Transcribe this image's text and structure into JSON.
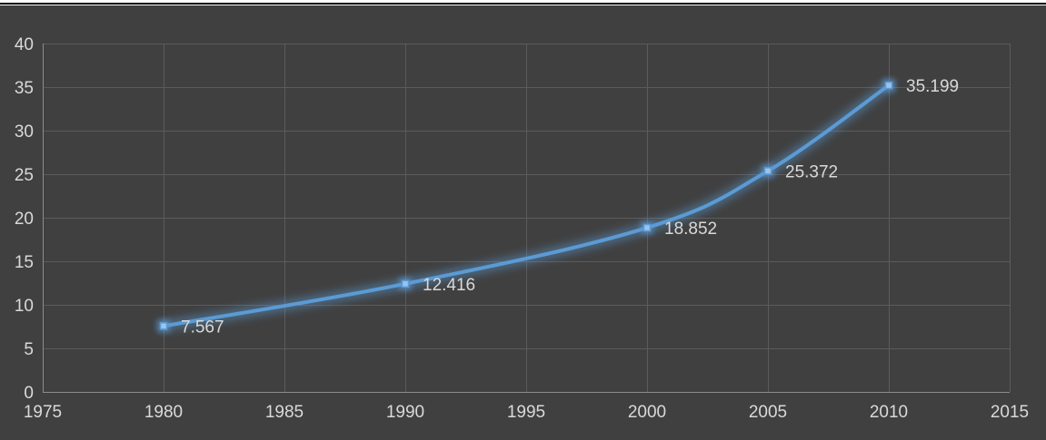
{
  "chart_data": {
    "type": "scatter",
    "title": "",
    "xlabel": "",
    "ylabel": "",
    "xlim": [
      1975,
      2015
    ],
    "ylim": [
      0,
      40
    ],
    "x_ticks": [
      "1975",
      "1980",
      "1985",
      "1990",
      "1995",
      "2000",
      "2005",
      "2010",
      "2015"
    ],
    "y_ticks": [
      "0",
      "5",
      "10",
      "15",
      "20",
      "25",
      "30",
      "35",
      "40"
    ],
    "grid": true,
    "legend": "none",
    "series": [
      {
        "x": [
          1980,
          1990,
          2000,
          2005,
          2010
        ],
        "y": [
          7.567,
          12.416,
          18.852,
          25.372,
          35.199
        ],
        "labels": [
          "7.567",
          "12.416",
          "18.852",
          "25.372",
          "35.199"
        ],
        "style": "smooth line with markers"
      }
    ]
  },
  "colors": {
    "background": "#404040",
    "grid": "#5b5b5b",
    "axis": "#8c8c8c",
    "text": "#d9d9d9",
    "series": "#5b9bd5",
    "glow": "#5b9bd5"
  }
}
